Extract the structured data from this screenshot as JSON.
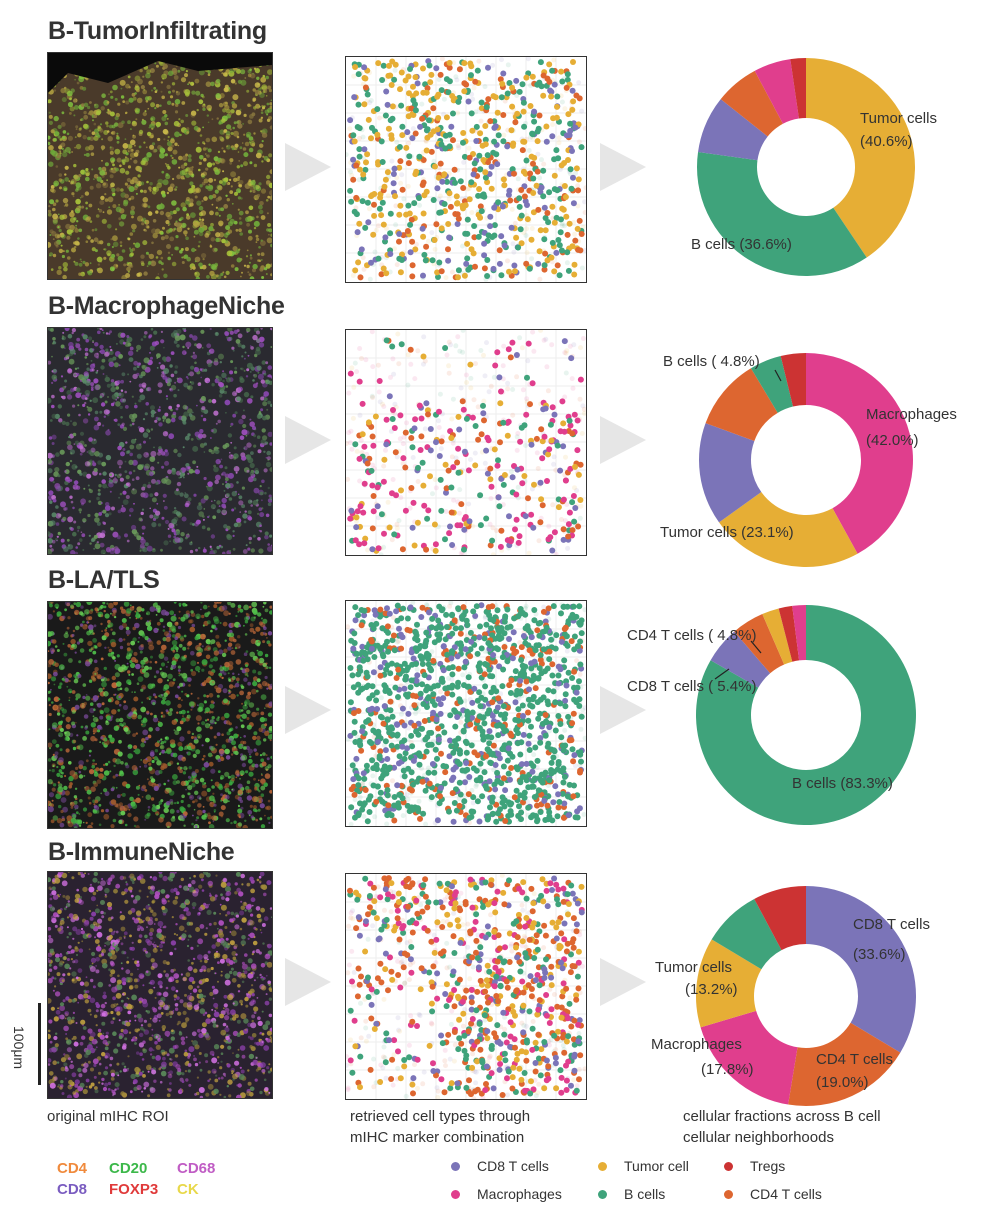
{
  "colors": {
    "cd8t": "#7b74b8",
    "tumor": "#e6ae35",
    "treg": "#cc3333",
    "macro": "#e03e8d",
    "bcell": "#3fa37b",
    "cd4t": "#dd6630",
    "arrow": "#e6e6e6"
  },
  "rows": [
    {
      "title": "B-TumorInfiltrating"
    },
    {
      "title": "B-MacrophageNiche"
    },
    {
      "title": "B-LA/TLS"
    },
    {
      "title": "B-ImmuneNiche"
    }
  ],
  "captions": {
    "roi": "original mIHC ROI",
    "scatter_line1": "retrieved cell types through",
    "scatter_line2": "mIHC marker combination",
    "donut_line1": "cellular fractions across B cell",
    "donut_line2": "cellular neighborhoods"
  },
  "scale_bar": {
    "label": "100μm"
  },
  "markers": [
    {
      "name": "CD4",
      "color": "#f08a3c"
    },
    {
      "name": "CD20",
      "color": "#3cb84a"
    },
    {
      "name": "CD68",
      "color": "#c05cc4"
    },
    {
      "name": "CD8",
      "color": "#7a5cc0"
    },
    {
      "name": "FOXP3",
      "color": "#e03a3a"
    },
    {
      "name": "CK",
      "color": "#e8d84a"
    }
  ],
  "legend": [
    {
      "label": "CD8 T cells",
      "color_key": "cd8t"
    },
    {
      "label": "Tumor cell",
      "color_key": "tumor"
    },
    {
      "label": "Tregs",
      "color_key": "treg"
    },
    {
      "label": "Macrophages",
      "color_key": "macro"
    },
    {
      "label": "B cells",
      "color_key": "bcell"
    },
    {
      "label": "CD4 T cells",
      "color_key": "cd4t"
    }
  ],
  "chart_data": [
    {
      "type": "pie",
      "title": "B-TumorInfiltrating",
      "categories": [
        "Tumor cells",
        "B cells",
        "CD8 T cells",
        "CD4 T cells",
        "Macrophages",
        "Tregs"
      ],
      "values": [
        40.6,
        36.6,
        8.5,
        6.5,
        5.5,
        2.3
      ],
      "labels": [
        {
          "line1": "Tumor cells",
          "line2": "(40.6%)"
        },
        {
          "line1": "B cells (36.6%)",
          "line2": ""
        }
      ]
    },
    {
      "type": "pie",
      "title": "B-MacrophageNiche",
      "categories": [
        "Macrophages",
        "Tumor cells",
        "CD8 T cells",
        "CD4 T cells",
        "B cells",
        "Tregs"
      ],
      "values": [
        42.0,
        23.1,
        15.5,
        10.8,
        4.8,
        3.8
      ],
      "labels": [
        {
          "line1": "Macrophages",
          "line2": "(42.0%)"
        },
        {
          "line1": "Tumor cells (23.1%)",
          "line2": ""
        },
        {
          "line1": "B cells ( 4.8%)",
          "line2": ""
        }
      ]
    },
    {
      "type": "pie",
      "title": "B-LA/TLS",
      "categories": [
        "B cells",
        "CD8 T cells",
        "CD4 T cells",
        "Tumor cells",
        "Tregs",
        "Macrophages"
      ],
      "values": [
        83.3,
        5.4,
        4.8,
        2.5,
        2.0,
        2.0
      ],
      "labels": [
        {
          "line1": "B cells (83.3%)",
          "line2": ""
        },
        {
          "line1": "CD8 T cells ( 5.4%)",
          "line2": ""
        },
        {
          "line1": "CD4 T cells ( 4.8%)",
          "line2": ""
        }
      ]
    },
    {
      "type": "pie",
      "title": "B-ImmuneNiche",
      "categories": [
        "CD8 T cells",
        "CD4 T cells",
        "Macrophages",
        "Tumor cells",
        "B cells",
        "Tregs"
      ],
      "values": [
        33.6,
        19.0,
        17.8,
        13.2,
        8.6,
        7.8
      ],
      "labels": [
        {
          "line1": "CD8 T cells",
          "line2": "(33.6%)"
        },
        {
          "line1": "CD4 T cells",
          "line2": "(19.0%)"
        },
        {
          "line1": "Macrophages",
          "line2": "(17.8%)"
        },
        {
          "line1": "Tumor cells",
          "line2": "(13.2%)"
        }
      ]
    }
  ]
}
